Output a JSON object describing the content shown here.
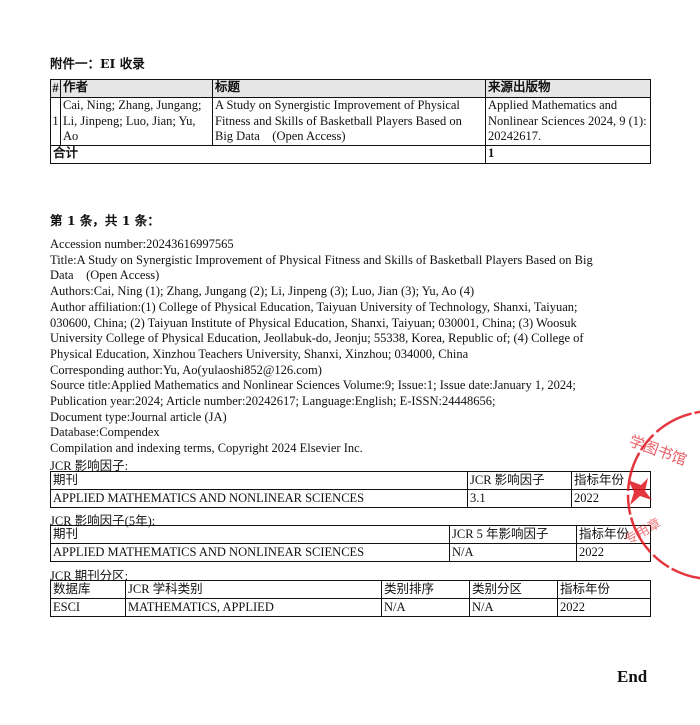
{
  "heading": "附件一：EI 收录",
  "summary_table": {
    "headers": [
      "#",
      "作者",
      "标题",
      "来源出版物"
    ],
    "row": {
      "num": "1",
      "authors": "Cai, Ning; Zhang, Jungang; Li, Jinpeng; Luo, Jian; Yu, Ao",
      "title": "A Study on Synergistic Improvement of Physical Fitness and Skills of Basketball Players Based on Big Data    (Open Access)",
      "source": "Applied Mathematics and Nonlinear Sciences 2024, 9 (1): 20242617."
    },
    "total_label": "合计",
    "total_value": "1"
  },
  "record_heading": "第 1 条，共 1 条：",
  "record_lines": [
    "Accession number:20243616997565",
    "Title:A Study on Synergistic Improvement of Physical Fitness and Skills of Basketball Players Based on Big",
    "Data    (Open Access)",
    "Authors:Cai, Ning (1); Zhang, Jungang (2); Li, Jinpeng (3); Luo, Jian (3); Yu, Ao (4)",
    "Author affiliation:(1) College of Physical Education, Taiyuan University of Technology, Shanxi, Taiyuan;",
    "030600, China; (2) Taiyuan Institute of Physical Education, Shanxi, Taiyuan; 030001, China; (3) Woosuk",
    "University College of Physical Education, Jeollabuk-do, Jeonju; 55338, Korea, Republic of; (4) College of",
    "Physical Education, Xinzhou Teachers University, Shanxi, Xinzhou; 034000, China",
    "Corresponding author:Yu, Ao(yulaoshi852@126.com)",
    "Source title:Applied Mathematics and Nonlinear Sciences Volume:9; Issue:1; Issue date:January 1, 2024;",
    "Publication year:2024; Article number:20242617; Language:English; E-ISSN:24448656;",
    "Document type:Journal article (JA)",
    "Database:Compendex",
    "Compilation and indexing terms, Copyright 2024 Elsevier Inc."
  ],
  "jcr_if": {
    "label": "JCR 影响因子:",
    "headers": [
      "期刊",
      "JCR 影响因子",
      "指标年份"
    ],
    "row": [
      "APPLIED MATHEMATICS AND NONLINEAR SCIENCES",
      "3.1",
      "2022"
    ]
  },
  "jcr_if5": {
    "label": "JCR 影响因子(5年):",
    "headers": [
      "期刊",
      "JCR 5 年影响因子",
      "指标年份"
    ],
    "row": [
      "APPLIED MATHEMATICS AND NONLINEAR SCIENCES",
      "N/A",
      "2022"
    ]
  },
  "jcr_quartile": {
    "label": "JCR 期刊分区:",
    "headers": [
      "数据库",
      "JCR 学科类别",
      "类别排序",
      "类别分区",
      "指标年份"
    ],
    "row": [
      "ESCI",
      "MATHEMATICS, APPLIED",
      "N/A",
      "N/A",
      "2022"
    ]
  },
  "end": "End",
  "stamp": {
    "text_top": "学图书馆",
    "text_bottom": "专用章",
    "color": "#e0141e"
  }
}
